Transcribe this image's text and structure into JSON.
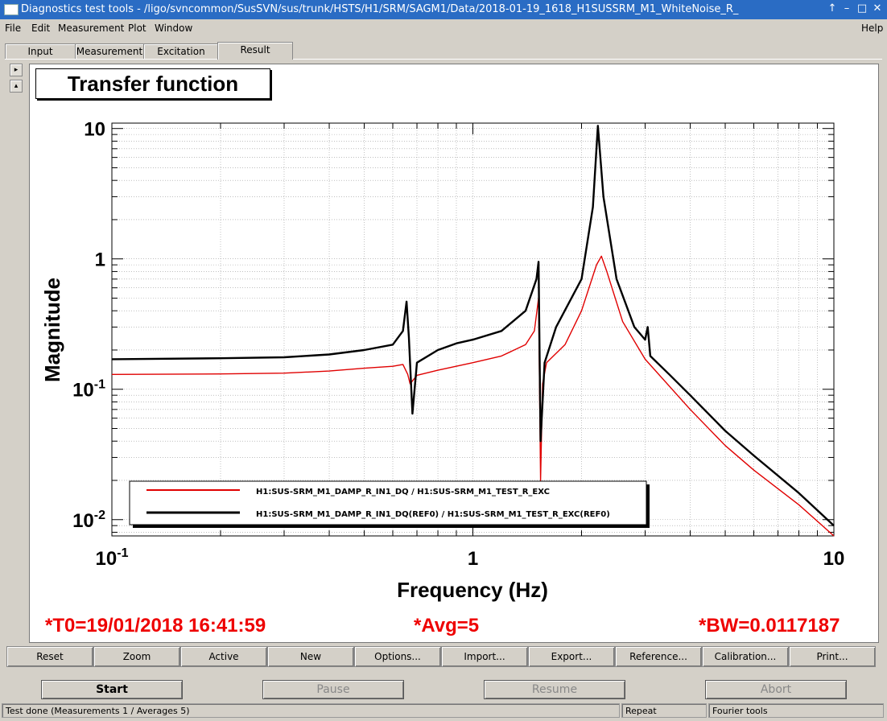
{
  "window": {
    "title": "Diagnostics test tools - /ligo/svncommon/SusSVN/sus/trunk/HSTS/H1/SRM/SAGM1/Data/2018-01-19_1618_H1SUSSRM_M1_WhiteNoise_R_",
    "controls": [
      "↑",
      "–",
      "□",
      "✕"
    ]
  },
  "menu": {
    "items": [
      "File",
      "Edit",
      "Measurement",
      "Plot",
      "Window"
    ],
    "help": "Help"
  },
  "tabs": [
    "Input",
    "Measurement",
    "Excitation",
    "Result"
  ],
  "active_tab": "Result",
  "side_buttons": [
    "▸",
    "▴"
  ],
  "plot": {
    "panel_title": "Transfer function",
    "info_t0": "*T0=19/01/2018 16:41:59",
    "info_avg": "*Avg=5",
    "info_bw": "*BW=0.0117187"
  },
  "chart_data": {
    "type": "line",
    "xlabel": "Frequency (Hz)",
    "ylabel": "Magnitude",
    "xscale": "log",
    "yscale": "log",
    "xlim": [
      0.1,
      10
    ],
    "ylim": [
      0.0075,
      11
    ],
    "grid": true,
    "legend_position": "bottom-left",
    "x_tick_labels": [
      "10^-1",
      "1",
      "10"
    ],
    "y_tick_labels": [
      "10^-2",
      "10^-1",
      "1",
      "10"
    ],
    "series": [
      {
        "name": "H1:SUS-SRM_M1_DAMP_R_IN1_DQ / H1:SUS-SRM_M1_TEST_R_EXC",
        "color": "#e00000",
        "points": [
          [
            0.1,
            0.13
          ],
          [
            0.2,
            0.131
          ],
          [
            0.3,
            0.133
          ],
          [
            0.4,
            0.138
          ],
          [
            0.5,
            0.145
          ],
          [
            0.6,
            0.15
          ],
          [
            0.64,
            0.155
          ],
          [
            0.66,
            0.13
          ],
          [
            0.67,
            0.11
          ],
          [
            0.7,
            0.128
          ],
          [
            0.8,
            0.14
          ],
          [
            1.0,
            0.16
          ],
          [
            1.2,
            0.18
          ],
          [
            1.4,
            0.22
          ],
          [
            1.48,
            0.28
          ],
          [
            1.52,
            0.5
          ],
          [
            1.54,
            0.02
          ],
          [
            1.56,
            0.11
          ],
          [
            1.6,
            0.16
          ],
          [
            1.8,
            0.22
          ],
          [
            2.0,
            0.4
          ],
          [
            2.2,
            0.9
          ],
          [
            2.27,
            1.05
          ],
          [
            2.35,
            0.8
          ],
          [
            2.6,
            0.33
          ],
          [
            3.0,
            0.17
          ],
          [
            4.0,
            0.07
          ],
          [
            5.0,
            0.037
          ],
          [
            6.0,
            0.024
          ],
          [
            8.0,
            0.013
          ],
          [
            10.0,
            0.0075
          ]
        ]
      },
      {
        "name": "H1:SUS-SRM_M1_DAMP_R_IN1_DQ(REF0) / H1:SUS-SRM_M1_TEST_R_EXC(REF0)",
        "color": "#000000",
        "points": [
          [
            0.1,
            0.17
          ],
          [
            0.2,
            0.173
          ],
          [
            0.3,
            0.176
          ],
          [
            0.4,
            0.185
          ],
          [
            0.5,
            0.2
          ],
          [
            0.6,
            0.22
          ],
          [
            0.64,
            0.28
          ],
          [
            0.655,
            0.47
          ],
          [
            0.665,
            0.25
          ],
          [
            0.68,
            0.065
          ],
          [
            0.7,
            0.16
          ],
          [
            0.8,
            0.2
          ],
          [
            0.9,
            0.225
          ],
          [
            1.0,
            0.24
          ],
          [
            1.2,
            0.28
          ],
          [
            1.4,
            0.4
          ],
          [
            1.5,
            0.7
          ],
          [
            1.52,
            0.95
          ],
          [
            1.54,
            0.04
          ],
          [
            1.58,
            0.16
          ],
          [
            1.7,
            0.3
          ],
          [
            2.0,
            0.7
          ],
          [
            2.15,
            2.5
          ],
          [
            2.22,
            10.5
          ],
          [
            2.3,
            3.0
          ],
          [
            2.5,
            0.7
          ],
          [
            2.8,
            0.3
          ],
          [
            3.0,
            0.24
          ],
          [
            3.05,
            0.3
          ],
          [
            3.1,
            0.18
          ],
          [
            3.5,
            0.13
          ],
          [
            4.0,
            0.09
          ],
          [
            5.0,
            0.048
          ],
          [
            6.0,
            0.031
          ],
          [
            8.0,
            0.016
          ],
          [
            10.0,
            0.009
          ]
        ]
      }
    ]
  },
  "buttons_row1": [
    "Reset",
    "Zoom",
    "Active",
    "New",
    "Options...",
    "Import...",
    "Export...",
    "Reference...",
    "Calibration...",
    "Print..."
  ],
  "buttons_row2": {
    "start": "Start",
    "pause": "Pause",
    "resume": "Resume",
    "abort": "Abort"
  },
  "status": {
    "message": "Test done (Measurements 1 / Averages 5)",
    "repeat": "Repeat",
    "tools": "Fourier tools"
  }
}
